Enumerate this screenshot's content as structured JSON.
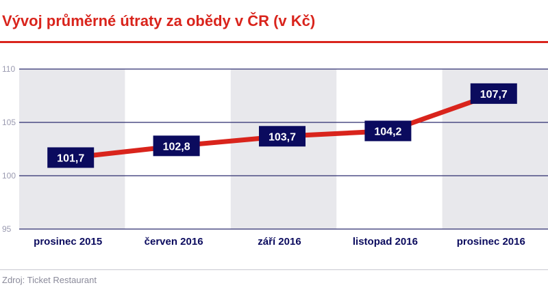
{
  "chart_data": {
    "type": "line",
    "title": "Vývoj průměrné útraty za obědy v ČR (v Kč)",
    "categories": [
      "prosinec 2015",
      "červen 2016",
      "září 2016",
      "listopad 2016",
      "prosinec 2016"
    ],
    "values": [
      101.7,
      102.8,
      103.7,
      104.2,
      107.7
    ],
    "data_labels": [
      "101,7",
      "102,8",
      "103,7",
      "104,2",
      "107,7"
    ],
    "ylim": [
      95,
      110
    ],
    "yticks": [
      95,
      100,
      105,
      110
    ],
    "grid": true,
    "legend": "none",
    "colors": {
      "line": "#d9241c",
      "label_bg": "#0b0b5e",
      "band": "#e8e8ec",
      "grid": "#2b2b6e",
      "title": "#d9241c"
    }
  },
  "source": "Zdroj: Ticket Restaurant"
}
